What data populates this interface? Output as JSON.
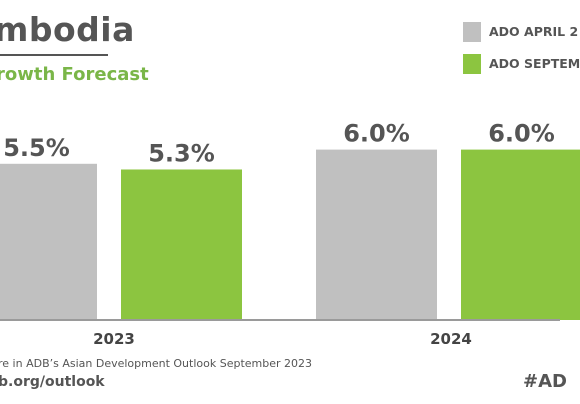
{
  "title": "mbodia",
  "subtitle": "rowth Forecast",
  "legend": [
    {
      "label": "ADO APRIL 2",
      "color": "#c0c0c0"
    },
    {
      "label": "ADO SEPTEM",
      "color": "#8cc540"
    }
  ],
  "footer": {
    "note": "re in ADB’s Asian Development Outlook September 2023",
    "link": "b.org/outlook",
    "hashtag": "#AD"
  },
  "chart_data": {
    "type": "bar",
    "categories": [
      "2023",
      "2024"
    ],
    "series": [
      {
        "name": "ADO APRIL 2",
        "values": [
          5.5,
          6.0
        ],
        "labels": [
          "5.5%",
          "6.0%"
        ],
        "color": "#c0c0c0"
      },
      {
        "name": "ADO SEPTEM",
        "values": [
          5.3,
          6.0
        ],
        "labels": [
          "5.3%",
          "6.0%"
        ],
        "color": "#8cc540"
      }
    ],
    "title": "mbodia",
    "subtitle": "rowth Forecast",
    "xlabel": "",
    "ylabel": "",
    "grid": false,
    "legend_position": "top-right"
  }
}
